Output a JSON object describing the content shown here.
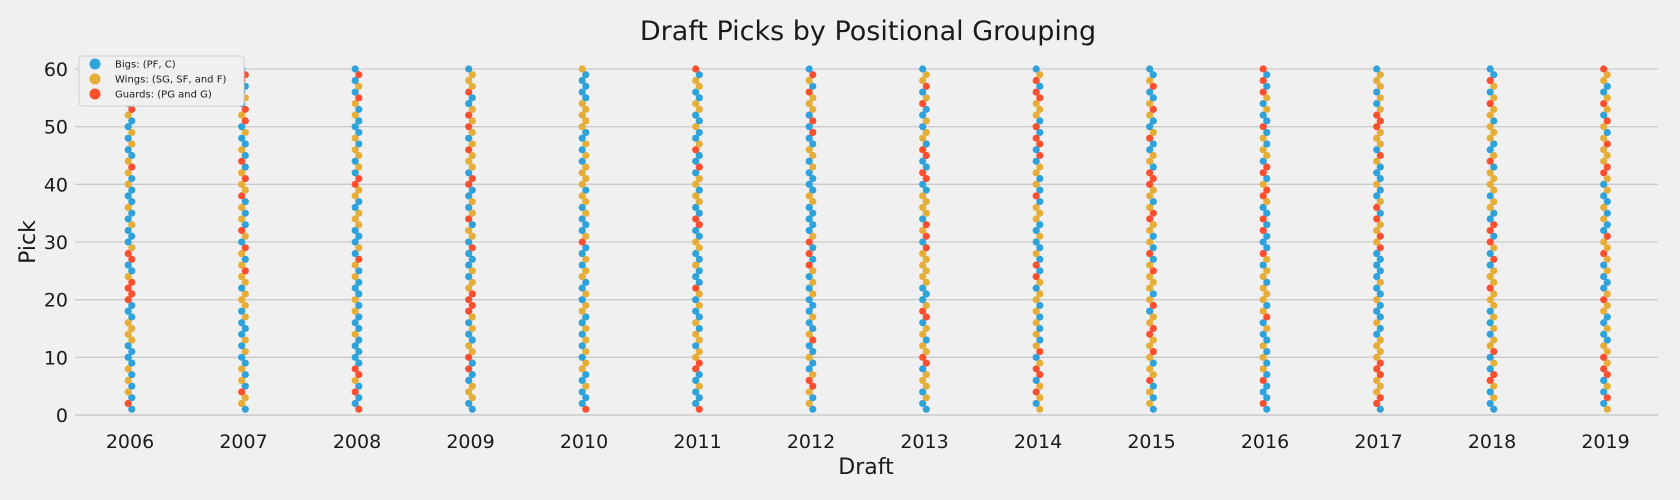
{
  "chart_data": {
    "type": "scatter",
    "title": "Draft Picks by Positional Grouping",
    "xlabel": "Draft",
    "ylabel": "Pick",
    "x_categories": [
      "2006",
      "2007",
      "2008",
      "2009",
      "2010",
      "2011",
      "2012",
      "2013",
      "2014",
      "2015",
      "2016",
      "2017",
      "2018",
      "2019"
    ],
    "ylim": [
      0,
      60
    ],
    "yticks": [
      0,
      10,
      20,
      30,
      40,
      50,
      60
    ],
    "grid": true,
    "legend_position": "top-left",
    "note": "Each draft year shows 60 picks (1–60), each colored by positional grouping; values read approximately from the image.",
    "series": [
      {
        "name": "Bigs: (PF, C)",
        "color": "#30a2da"
      },
      {
        "name": "Wings: (SG, SF, and F)",
        "color": "#e5ae38"
      },
      {
        "name": "Guards: (PG and G)",
        "color": "#fc4f30"
      }
    ],
    "picks": {
      "2006": "BGBWBWBWBBBBWWWWBBBGGGGWBBGGWBBBWBBWBBBWBWGWBBWBWBBWGBGWBWBW",
      "2007": "BWWGBWBWBBWBWBBBWBWWWBWWGWBWGBWGBWBWBGWWGWBGBWBBWBGWGBWBBGGB",
      "2008": "GBBGBWGGBBBBBWBBBWBWBBBWBWGBWBBBWWWBBWWGGBWBWWBWBBBWBWGBWBGB",
      "2009": "BBWWWBBGBGWWBBWBWGGGGWWBWBBBGBWWBGWBWBBGGBWWWGWBWGWGWBBGWWWB",
      "2010": "GBBBWBBWWBWBWBWBBWWBWBBWWBWBBGWBBBWBWWBWWWWBWBWBBWWWWWBBBBBW",
      "2011": "GBBBWBBGGWWBWWBWBBWBWGBBBWBBWWBBGGBBWWBWWBGBBGWBBWBBWWBBWWBG",
      "2012": "BWBWGGWBBWBBGWBBWBBBWBWBWGBGBGWBBBBBWWBBBBWBWWBBGBGBWWWGBWGB",
      "2013": "BBWBWWWBGGWWBWWBGGWBBBWWWWWWGBGWGBWWWWBBGGBBGGBWWBWBBGWBGWWB",
      "2014": "WBWGWBGGWBGWBWBWBWBWWBWGBGBWBBWBBWWWBGBWBWWBGBGGBGBWWWGGBGWB",
      "2015": "BWBWBGWWBWGWWGGWWBGWBWWWGWBGBWBWWGGWBWWGGGBWWBBGWBBWGWBBGWBB",
      "2016": "BGBBBGBWBWBWBBWBGWBWWWBWWBWGBBBGBGBBWGGWBGGBWWBWBGBBWBWGBGBG",
      "2017": "BGGWWWGGGWWWWBBWBBBWBBWBBBBBGWGWWGBGWBBWBBBWGBWWWGGGWBWBWWWB",
      "2018": "BBWBWGGBWBGWWBWBWBWWWGWWWBGBWGBGGBBWWBWWWWBGWBBWWWBWWGWBWGBB",
      "2019": "WBGBWBGGWGWWBBWBBWWGWBBBWBWGWWGBBWBWBBWBWGGWWWGWBWGBWGWBBWWG"
    }
  }
}
